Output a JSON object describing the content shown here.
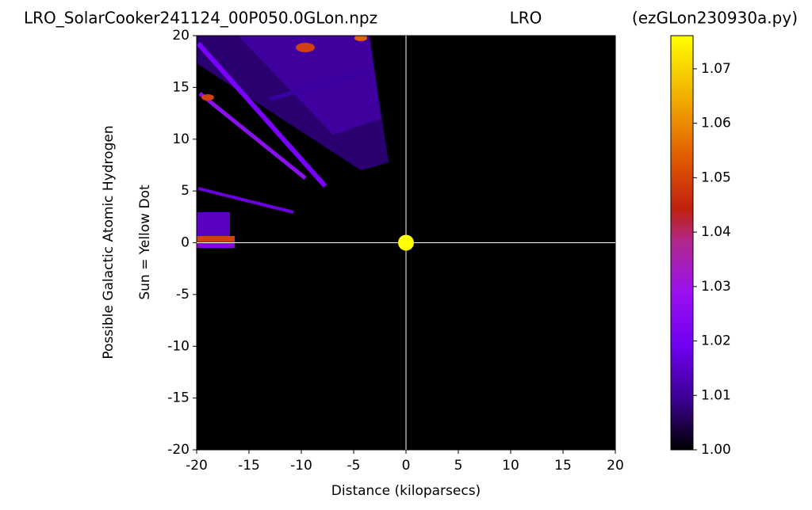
{
  "chart_data": {
    "type": "heatmap",
    "titles": [
      "LRO_SolarCooker241124_00P050.0GLon.npz",
      "LRO",
      "(ezGLon230930a.py)"
    ],
    "xlabel": "Distance (kiloparsecs)",
    "ylabels": [
      "Possible Galactic Atomic Hydrogen",
      "Sun = Yellow Dot"
    ],
    "xlim": [
      -20,
      20
    ],
    "ylim": [
      -20,
      20
    ],
    "xticks": [
      -20,
      -15,
      -10,
      -5,
      0,
      5,
      10,
      15,
      20
    ],
    "yticks": [
      -20,
      -15,
      -10,
      -5,
      0,
      5,
      10,
      15,
      20
    ],
    "sun": {
      "x": 0,
      "y": 0,
      "color": "#ffff00"
    },
    "colorbar": {
      "lim": [
        1.0,
        1.0761
      ],
      "ticks": [
        {
          "value": 1.0,
          "label": "1.00"
        },
        1.01,
        1.02,
        1.03,
        1.04,
        1.05,
        1.06,
        1.07
      ]
    }
  }
}
